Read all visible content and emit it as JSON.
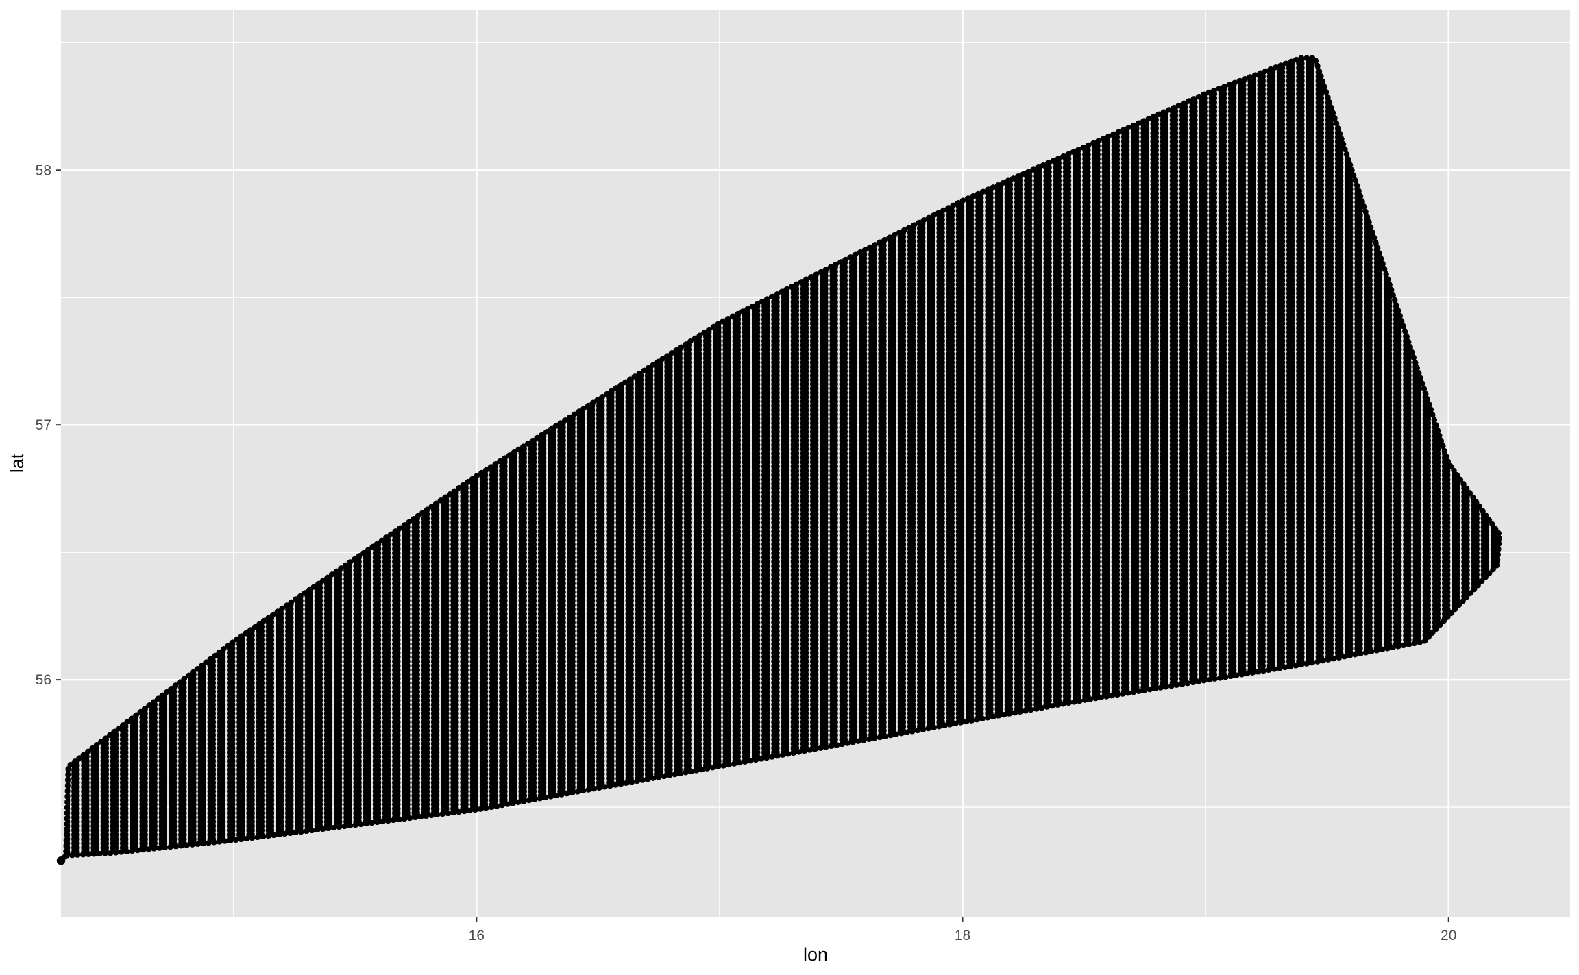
{
  "chart_data": {
    "type": "scatter",
    "title": "",
    "xlabel": "lon",
    "ylabel": "lat",
    "xlim": [
      14.29,
      20.5
    ],
    "ylim": [
      55.07,
      58.63
    ],
    "x_ticks": [
      16,
      18,
      20
    ],
    "x_tick_labels": [
      "16",
      "18",
      "20"
    ],
    "x_minor_breaks": [
      15,
      17,
      19
    ],
    "y_ticks": [
      56,
      57,
      58
    ],
    "y_tick_labels": [
      "56",
      "57",
      "58"
    ],
    "y_minor_breaks": [
      55.5,
      56.5,
      57.5,
      58.5
    ],
    "grid": true,
    "panel_background": "#e5e5e5",
    "grid_color": "#ffffff",
    "point_color": "#000000",
    "region_outline": {
      "description": "boundary of the dense point grid",
      "lon": [
        14.29,
        14.31,
        14.32,
        15.0,
        16.0,
        17.0,
        18.0,
        19.0,
        19.39,
        19.45,
        20.0,
        20.21,
        20.2,
        19.9,
        19.4,
        18.5,
        17.0,
        16.0,
        15.0,
        14.5,
        14.31
      ],
      "lat": [
        55.29,
        55.31,
        55.66,
        56.15,
        56.8,
        57.4,
        57.88,
        58.3,
        58.44,
        58.44,
        56.85,
        56.57,
        56.45,
        56.15,
        56.06,
        55.92,
        55.66,
        55.49,
        55.37,
        55.32,
        55.31
      ]
    },
    "point_grid": {
      "lon_min": 14.31,
      "lon_max": 20.21,
      "lon_step": 0.04,
      "lat_step": 0.017
    },
    "isolated_points": [
      {
        "lon": 14.29,
        "lat": 55.29
      }
    ]
  }
}
